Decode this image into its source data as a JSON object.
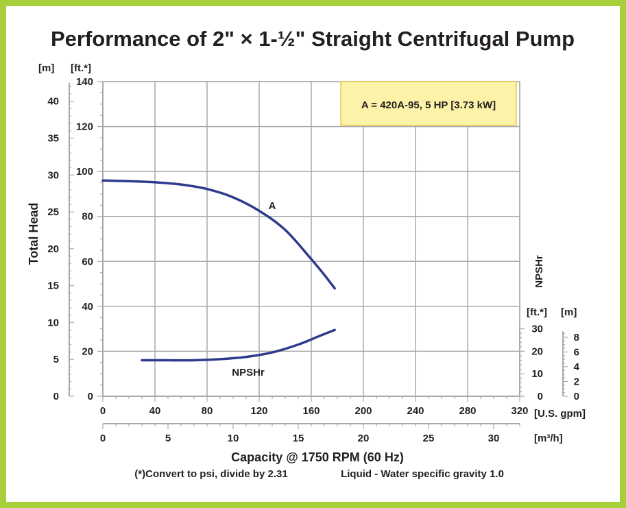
{
  "colors": {
    "frame": "#a6cf3b",
    "grid": "#a7a9ac",
    "curve": "#2e3a8c",
    "legend_fill": "#fdf3a8",
    "legend_border": "#e8c84a",
    "text": "#231f20"
  },
  "chart_data": {
    "type": "line",
    "title": "Performance of 2\" × 1-½\" Straight Centrifugal Pump",
    "xlabel": "Capacity @ 1750 RPM (60 Hz)",
    "ylabel": "Total Head",
    "right_axis_label": "NPSHr",
    "x_gpm": {
      "unit": "[U.S. gpm]",
      "range": [
        0,
        320
      ],
      "ticks": [
        0,
        40,
        80,
        120,
        160,
        200,
        240,
        280,
        320
      ]
    },
    "x_m3h": {
      "unit": "[m³/h]",
      "range": [
        0,
        32
      ],
      "ticks": [
        0,
        5,
        10,
        15,
        20,
        25,
        30
      ]
    },
    "y_ft": {
      "unit": "[ft.*]",
      "range": [
        0,
        140
      ],
      "ticks": [
        0,
        20,
        40,
        60,
        80,
        100,
        120,
        140
      ]
    },
    "y_m": {
      "unit": "[m]",
      "ticks": [
        0,
        5,
        10,
        15,
        20,
        25,
        30,
        35,
        40
      ]
    },
    "npsh_ft": {
      "unit": "[ft.*]",
      "ticks": [
        0,
        10,
        20,
        30
      ]
    },
    "npsh_m": {
      "unit": "[m]",
      "ticks": [
        0,
        2,
        4,
        6,
        8
      ]
    },
    "grid": true,
    "legend": {
      "text": "A = 420A-95, 5 HP [3.73 kW]",
      "position": "top-right"
    },
    "series": [
      {
        "name": "A",
        "x": [
          0,
          20,
          40,
          60,
          80,
          100,
          120,
          140,
          160,
          170,
          178
        ],
        "y": [
          96,
          95.7,
          95.2,
          94.2,
          92.2,
          88.5,
          82.5,
          74,
          61,
          54,
          48
        ]
      },
      {
        "name": "NPSHr",
        "x": [
          30,
          50,
          70,
          90,
          110,
          130,
          150,
          165,
          178
        ],
        "y": [
          16,
          16,
          16,
          16.5,
          17.5,
          19.5,
          23,
          26.5,
          29.5
        ]
      }
    ],
    "footnote": "(*)Convert to psi, divide by 2.31",
    "fluid_note": "Liquid - Water specific gravity 1.0"
  }
}
